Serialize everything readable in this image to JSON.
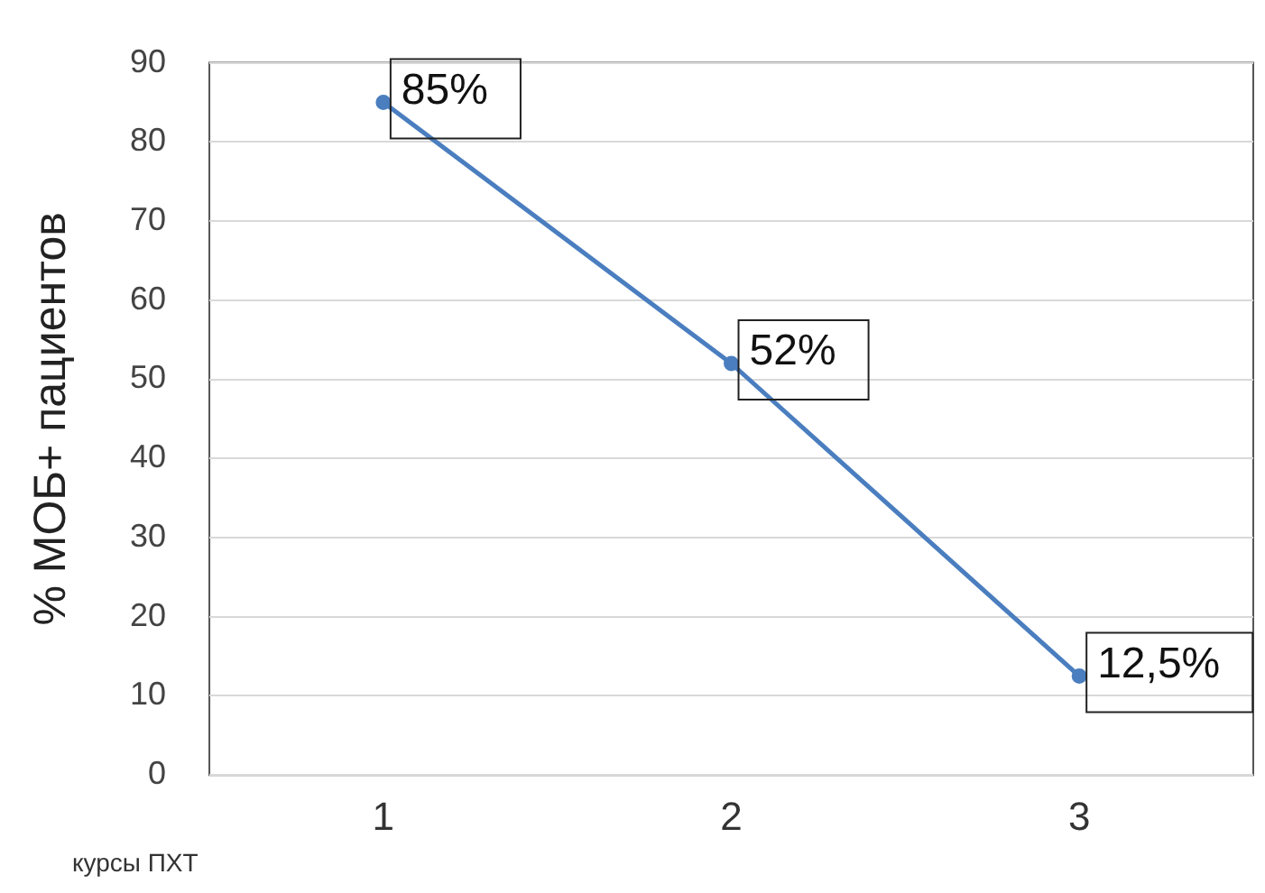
{
  "chart_data": {
    "type": "line",
    "ylabel": "% МОБ+ пациентов",
    "xlabel": "курсы ПХТ",
    "categories": [
      "1",
      "2",
      "3"
    ],
    "series": [
      {
        "color": "#4a7ebf",
        "values": [
          85,
          52,
          12.5
        ],
        "value_labels": [
          "85%",
          "52%",
          "12,5%"
        ]
      }
    ],
    "ylim": [
      0,
      90
    ],
    "yticks": [
      0,
      10,
      20,
      30,
      40,
      50,
      60,
      70,
      80,
      90
    ],
    "grid": "y",
    "legend": false,
    "marker": "circle",
    "line_style": "solid"
  }
}
